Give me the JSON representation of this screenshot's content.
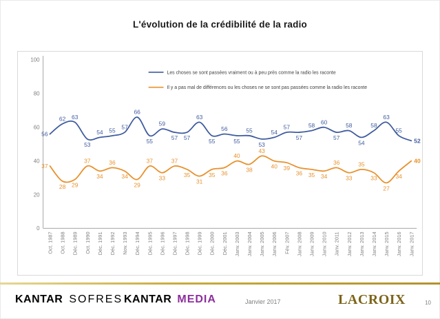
{
  "title": "L'évolution de la crédibilité de la radio",
  "footer": {
    "kantar_sofres": {
      "part1": "KANTAR",
      "part2": "SOFRES"
    },
    "kantar_media": {
      "part1": "KANTAR",
      "part2": "MEDIA"
    },
    "date": "Janvier 2017",
    "lacroix": "LACROIX",
    "page_number": "10"
  },
  "colors": {
    "blue_series": "#3F5B9E",
    "orange_series": "#E8912D",
    "gold_divider": "#C9AB3A",
    "axis_gray": "#A6A6A6",
    "label_gray": "#7F7F7F"
  },
  "chart_data": {
    "type": "line",
    "title": "L'évolution de la crédibilité de la radio",
    "xlabel": "",
    "ylabel": "",
    "ylim": [
      0,
      100
    ],
    "yticks": [
      0,
      20,
      40,
      60,
      80,
      100
    ],
    "grid": false,
    "legend_position": "top-center-inside",
    "categories": [
      "Oct. 1987",
      "Oct. 1988",
      "Déc. 1989",
      "Oct. 1990",
      "Déc. 1991",
      "Déc. 1992",
      "Nov. 1993",
      "Déc. 1994",
      "Déc. 1995",
      "Déc. 1996",
      "Déc. 1997",
      "Déc. 1998",
      "Déc. 1999",
      "Déc. 2000",
      "Déc. 2001",
      "Janv. 2003",
      "Janv. 2004",
      "Janv. 2005",
      "Janv. 2006",
      "Fév. 2007",
      "Janv. 2008",
      "Janv. 2009",
      "Janv. 2010",
      "Janv. 2011",
      "Janv. 2012",
      "Janv. 2013",
      "Janv. 2014",
      "Janv. 2015",
      "Janv. 2016",
      "Janv. 2017"
    ],
    "series": [
      {
        "name": "Les choses se sont passées vraiment ou à peu près comme la radio les raconte",
        "color": "#3F5B9E",
        "values": [
          56,
          62,
          63,
          53,
          54,
          55,
          57,
          66,
          55,
          59,
          57,
          57,
          63,
          55,
          56,
          55,
          55,
          53,
          54,
          57,
          57,
          58,
          60,
          57,
          58,
          54,
          58,
          63,
          55,
          52
        ]
      },
      {
        "name": "Il y a pas mal de différences ou les choses ne se sont pas passées comme la radio les raconte",
        "color": "#E8912D",
        "values": [
          37,
          28,
          29,
          37,
          34,
          36,
          34,
          29,
          37,
          33,
          37,
          35,
          31,
          35,
          36,
          40,
          38,
          43,
          40,
          39,
          36,
          35,
          34,
          36,
          33,
          35,
          33,
          27,
          34,
          40
        ]
      }
    ]
  }
}
